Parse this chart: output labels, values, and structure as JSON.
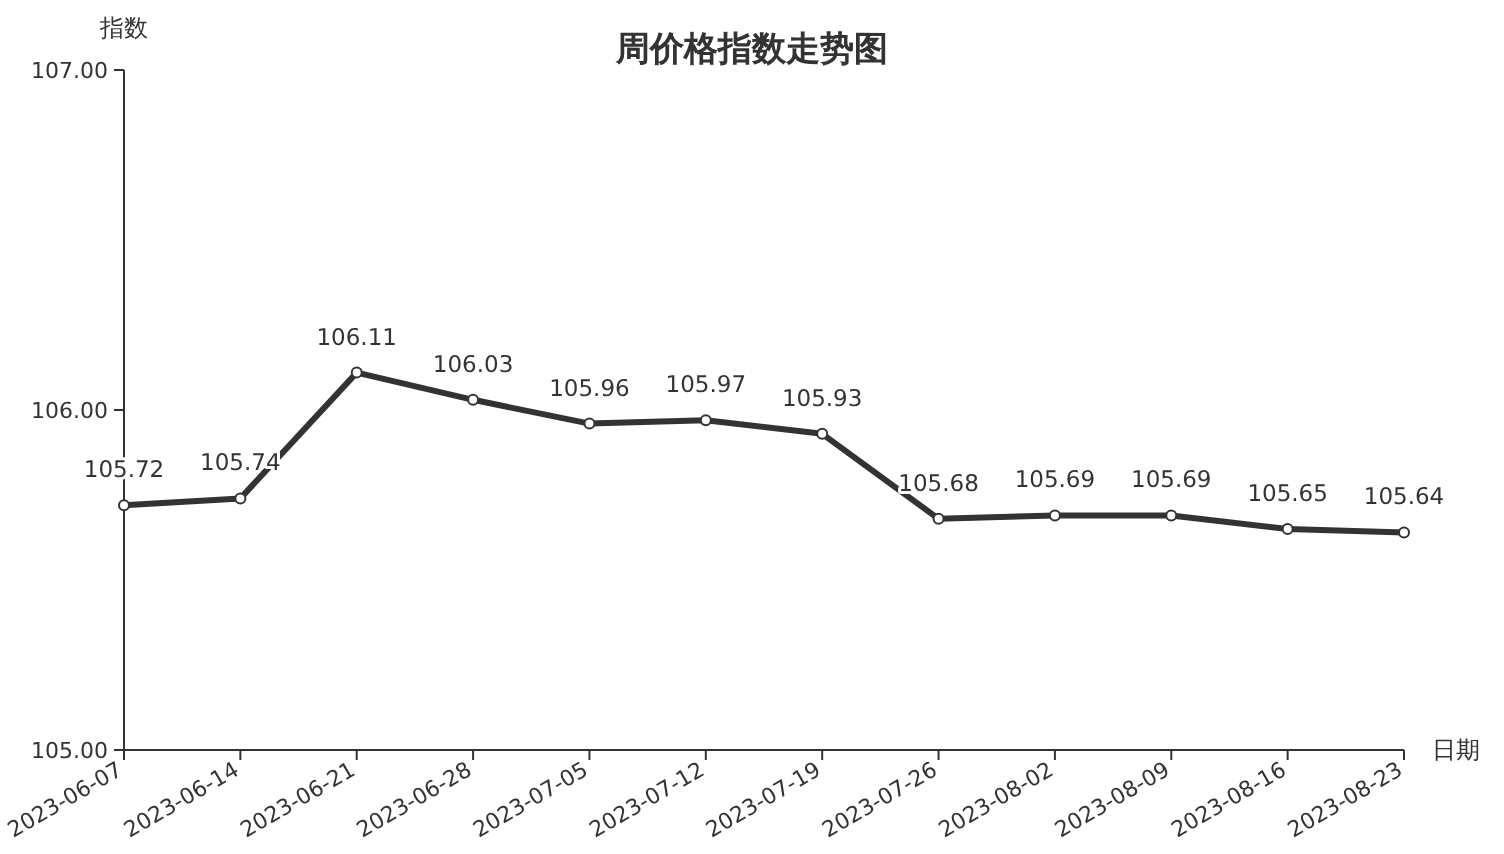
{
  "chart_data": {
    "type": "line",
    "title": "周价格指数走势图",
    "xlabel": "日期",
    "ylabel": "指数",
    "categories": [
      "2023-06-07",
      "2023-06-14",
      "2023-06-21",
      "2023-06-28",
      "2023-07-05",
      "2023-07-12",
      "2023-07-19",
      "2023-07-26",
      "2023-08-02",
      "2023-08-09",
      "2023-08-16",
      "2023-08-23"
    ],
    "series": [
      {
        "color": "#333333",
        "values": [
          105.72,
          105.74,
          106.11,
          106.03,
          105.96,
          105.97,
          105.93,
          105.68,
          105.69,
          105.69,
          105.65,
          105.64
        ]
      }
    ],
    "ylim": [
      105,
      107
    ],
    "yticks": [
      {
        "value": 105,
        "label": "105.00"
      },
      {
        "value": 106,
        "label": "106.00"
      },
      {
        "value": 107,
        "label": "107.00"
      }
    ],
    "data_labels": true,
    "marker": "circle",
    "line_style": "solid",
    "grid": false
  }
}
